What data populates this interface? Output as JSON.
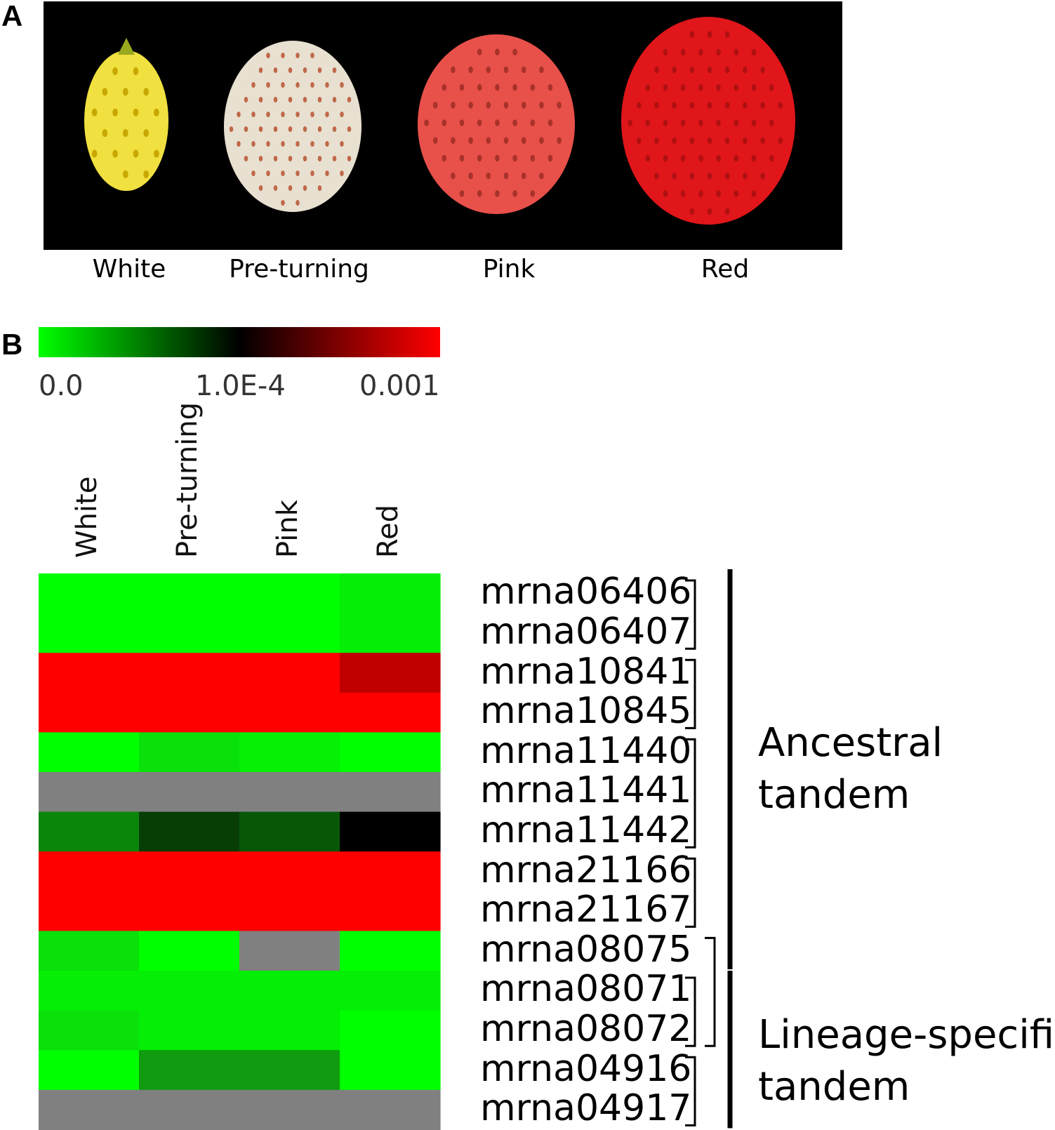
{
  "panels": {
    "a": "A",
    "b": "B"
  },
  "photo_panel": {
    "stages": [
      "White",
      "Pre-turning",
      "Pink",
      "Red"
    ],
    "fruit_colors": [
      "#f0e040",
      "#e8e0d0",
      "#e8504a",
      "#e0161a"
    ],
    "seed_colors": [
      "#c8a800",
      "#c0684a",
      "#a8322a",
      "#b01012"
    ]
  },
  "chart_data": {
    "type": "heatmap",
    "title": "",
    "color_scale": {
      "tick_labels": [
        "0.0",
        "1.0E-4",
        "0.001"
      ],
      "colors": [
        "#00ff00",
        "#000000",
        "#ff0000"
      ],
      "missing_color": "#808080"
    },
    "columns": [
      "White",
      "Pre-turning",
      "Pink",
      "Red"
    ],
    "rows": [
      "mrna06406",
      "mrna06407",
      "mrna10841",
      "mrna10845",
      "mrna11440",
      "mrna11441",
      "mrna11442",
      "mrna21166",
      "mrna21167",
      "mrna08075",
      "mrna08071",
      "mrna08072",
      "mrna04916",
      "mrna04917"
    ],
    "cell_colors": [
      [
        "#00ff00",
        "#00ff00",
        "#00ff00",
        "#05ee05"
      ],
      [
        "#00ff00",
        "#00ff00",
        "#00ff00",
        "#05ee05"
      ],
      [
        "#ff0000",
        "#ff0000",
        "#ff0000",
        "#c00000"
      ],
      [
        "#ff0000",
        "#ff0000",
        "#ff0000",
        "#ff0000"
      ],
      [
        "#00ff00",
        "#0ae00a",
        "#05f005",
        "#00ff00"
      ],
      [
        "#808080",
        "#808080",
        "#808080",
        "#808080"
      ],
      [
        "#0a860a",
        "#063e06",
        "#075707",
        "#000000"
      ],
      [
        "#ff0000",
        "#ff0000",
        "#ff0000",
        "#ff0000"
      ],
      [
        "#ff0000",
        "#ff0000",
        "#ff0000",
        "#ff0000"
      ],
      [
        "#0ae00a",
        "#00ff00",
        "#808080",
        "#00ff00"
      ],
      [
        "#05ee05",
        "#05ee05",
        "#05ee05",
        "#05ee05"
      ],
      [
        "#0ae00a",
        "#05ee05",
        "#05ee05",
        "#00ff00"
      ],
      [
        "#00ff00",
        "#109b10",
        "#109b10",
        "#00ff00"
      ],
      [
        "#808080",
        "#808080",
        "#808080",
        "#808080"
      ]
    ],
    "pair_groups": [
      [
        "mrna06406",
        "mrna06407"
      ],
      [
        "mrna10841",
        "mrna10845"
      ],
      [
        "mrna11440",
        "mrna11441",
        "mrna11442"
      ],
      [
        "mrna21166",
        "mrna21167"
      ],
      [
        "mrna08071",
        "mrna08072"
      ],
      [
        "mrna08075",
        "mrna08072"
      ],
      [
        "mrna04916",
        "mrna04917"
      ]
    ],
    "categories": [
      {
        "lines": [
          "Ancestral",
          "tandem"
        ],
        "from_row": "mrna06406",
        "to_row": "mrna08075"
      },
      {
        "lines": [
          "Lineage-specific",
          "tandem"
        ],
        "from_row": "mrna08071",
        "to_row": "mrna04917"
      }
    ]
  }
}
